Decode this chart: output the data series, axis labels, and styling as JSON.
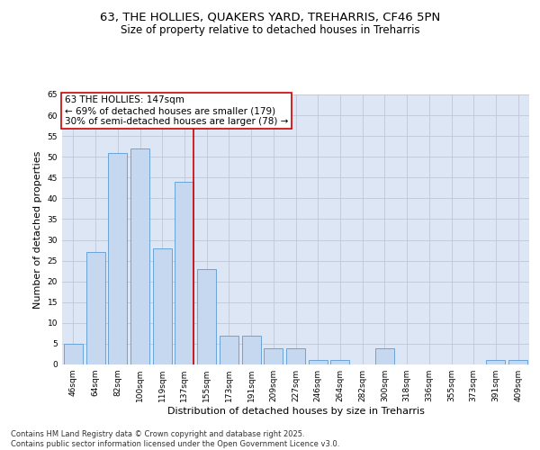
{
  "title_line1": "63, THE HOLLIES, QUAKERS YARD, TREHARRIS, CF46 5PN",
  "title_line2": "Size of property relative to detached houses in Treharris",
  "xlabel": "Distribution of detached houses by size in Treharris",
  "ylabel": "Number of detached properties",
  "categories": [
    "46sqm",
    "64sqm",
    "82sqm",
    "100sqm",
    "119sqm",
    "137sqm",
    "155sqm",
    "173sqm",
    "191sqm",
    "209sqm",
    "227sqm",
    "246sqm",
    "264sqm",
    "282sqm",
    "300sqm",
    "318sqm",
    "336sqm",
    "355sqm",
    "373sqm",
    "391sqm",
    "409sqm"
  ],
  "values": [
    5,
    27,
    51,
    52,
    28,
    44,
    23,
    7,
    7,
    4,
    4,
    1,
    1,
    0,
    4,
    0,
    0,
    0,
    0,
    1,
    1
  ],
  "bar_color": "#c5d8f0",
  "bar_edge_color": "#5b9bd5",
  "vline_color": "#cc0000",
  "vline_x_index": 5,
  "annotation_text": "63 THE HOLLIES: 147sqm\n← 69% of detached houses are smaller (179)\n30% of semi-detached houses are larger (78) →",
  "annotation_box_color": "#ffffff",
  "annotation_box_edge": "#cc0000",
  "ylim": [
    0,
    65
  ],
  "yticks": [
    0,
    5,
    10,
    15,
    20,
    25,
    30,
    35,
    40,
    45,
    50,
    55,
    60,
    65
  ],
  "grid_color": "#c0c8d8",
  "background_color": "#dce6f5",
  "footer_line1": "Contains HM Land Registry data © Crown copyright and database right 2025.",
  "footer_line2": "Contains public sector information licensed under the Open Government Licence v3.0.",
  "title_fontsize": 9.5,
  "subtitle_fontsize": 8.5,
  "tick_fontsize": 6.5,
  "label_fontsize": 8,
  "annotation_fontsize": 7.5,
  "footer_fontsize": 6
}
